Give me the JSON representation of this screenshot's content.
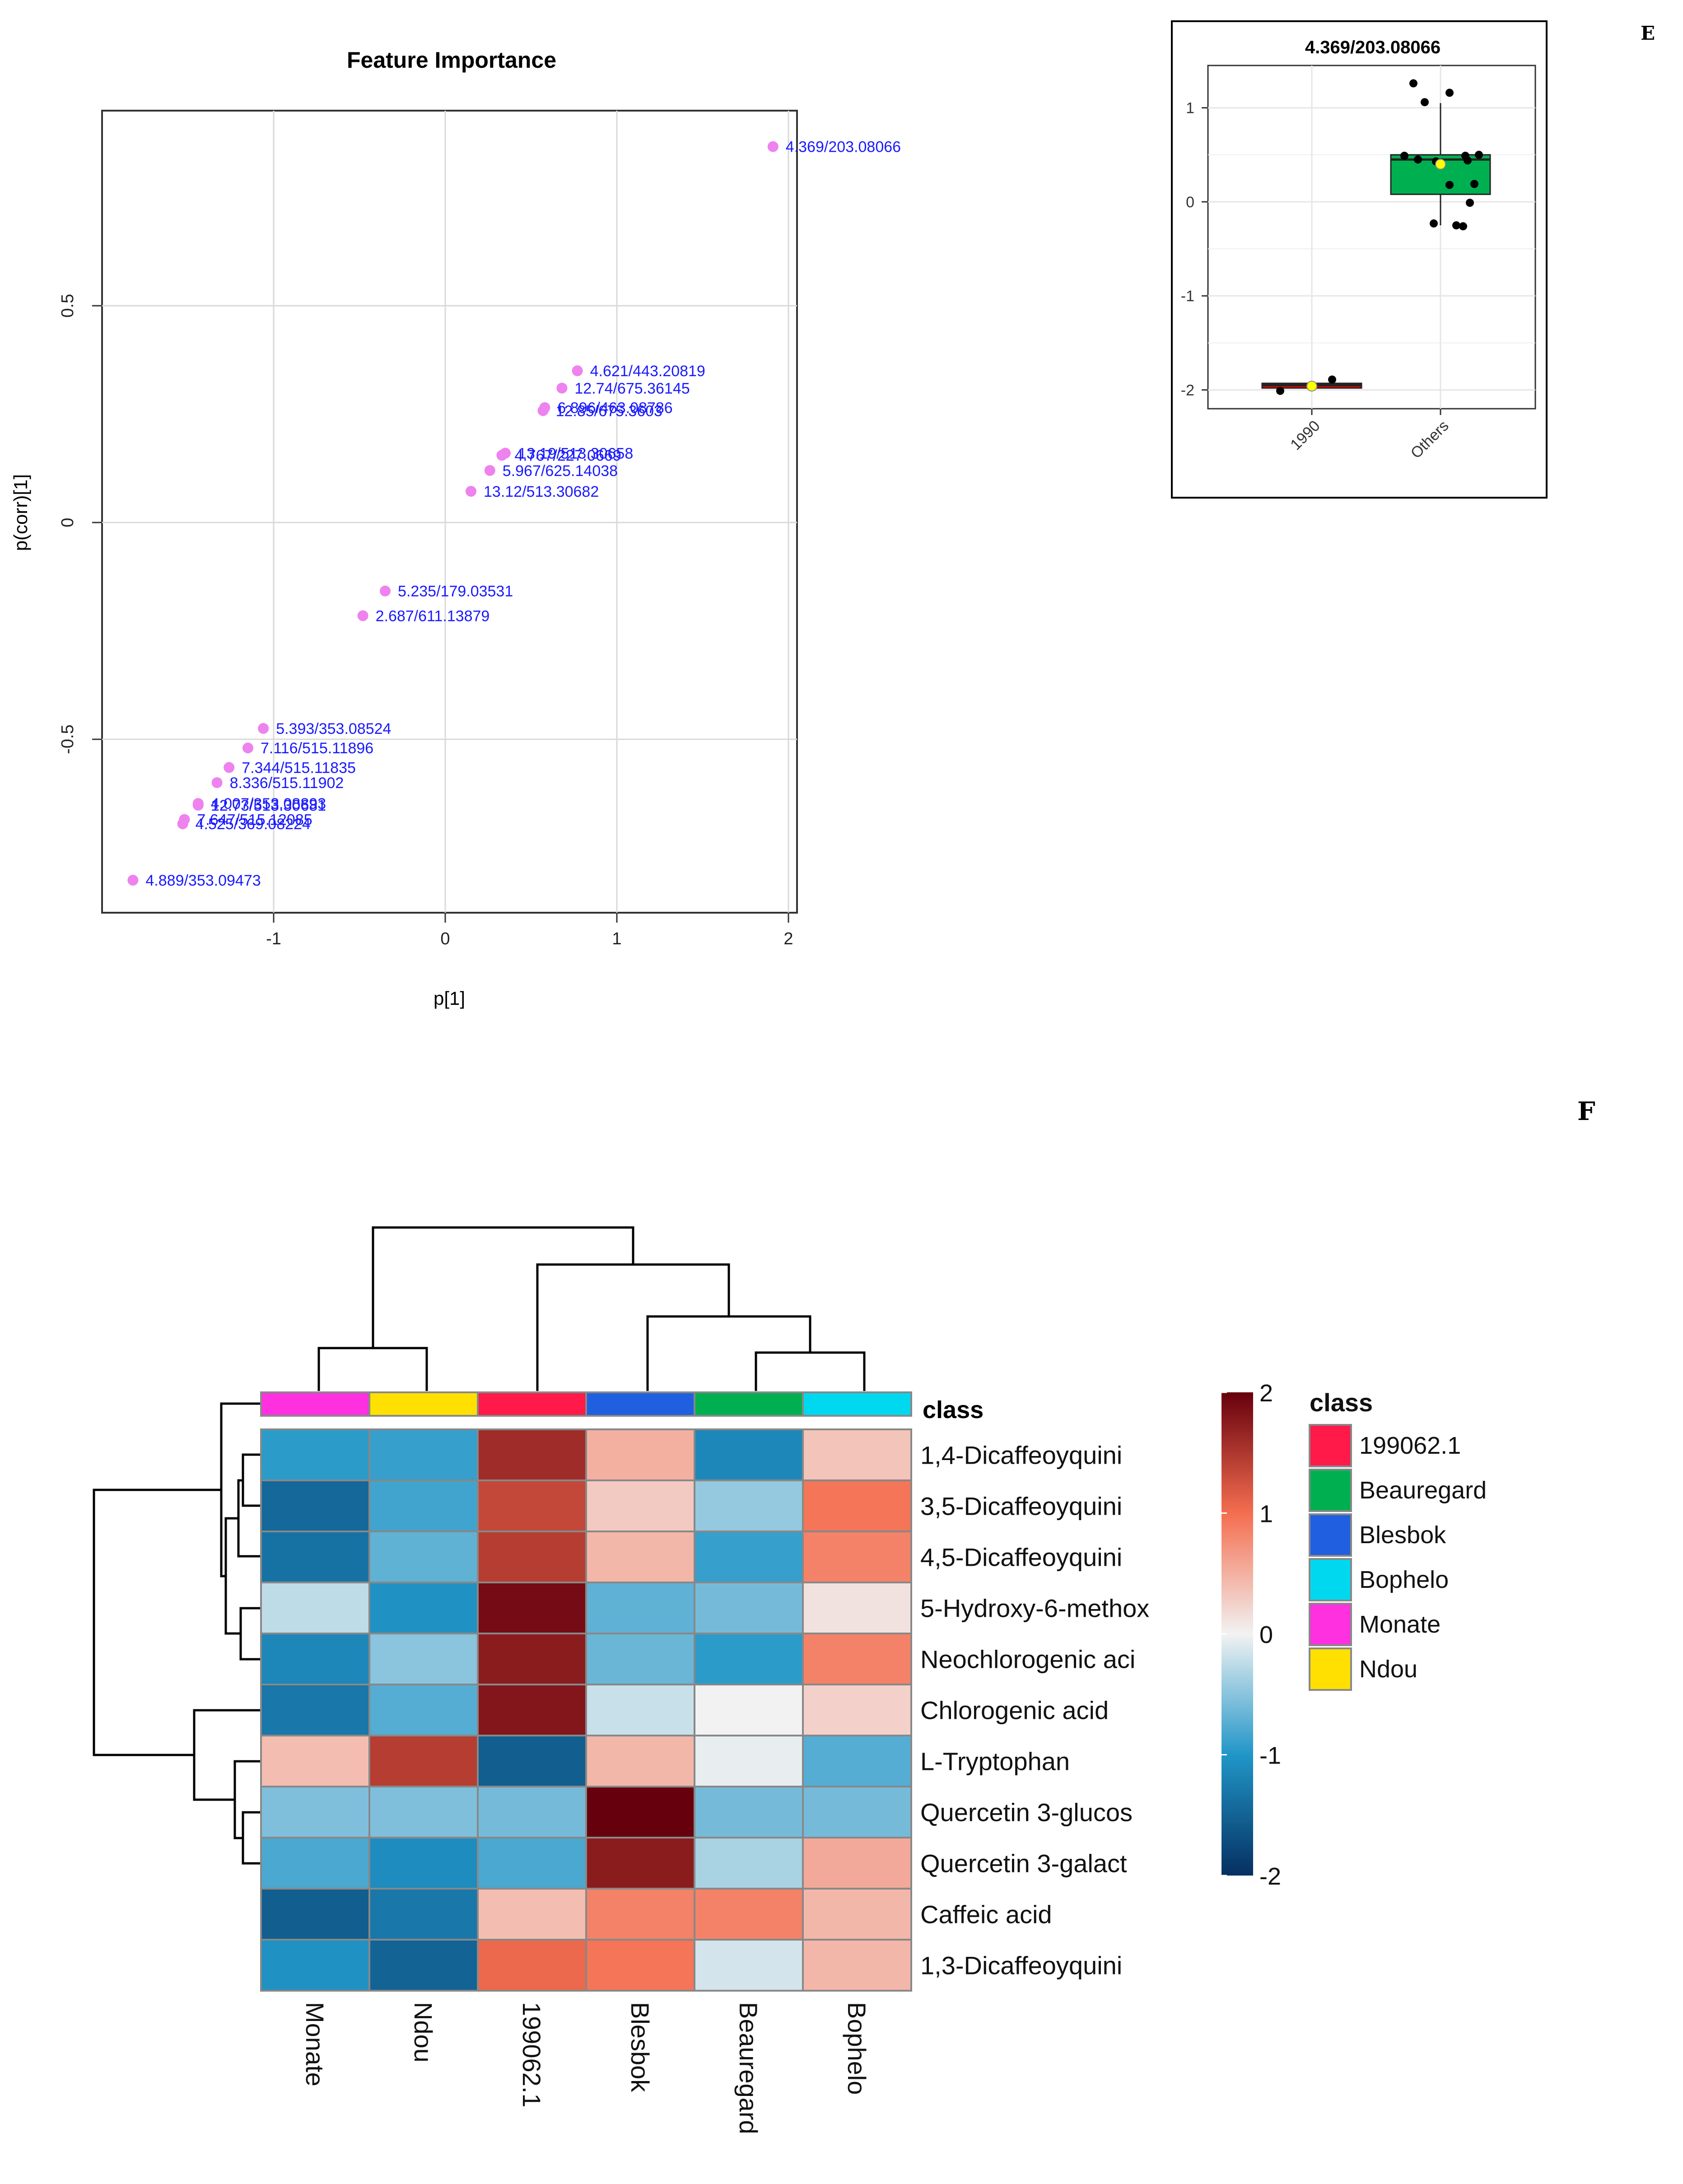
{
  "panel_labels": {
    "e": "E",
    "f": "F"
  },
  "chart_data": [
    {
      "type": "scatter",
      "title": "Feature Importance",
      "xlabel": "p[1]",
      "ylabel": "p(corr)[1]",
      "xlim": [
        -2.0,
        2.05
      ],
      "ylim": [
        -0.9,
        0.95
      ],
      "xticks": [
        -1,
        0,
        1,
        2
      ],
      "yticks": [
        -0.5,
        0.0,
        0.5
      ],
      "grid": true,
      "point_color": "#ee82ee",
      "label_color": "#1a1aff",
      "points": [
        {
          "x": 1.91,
          "y": 0.867,
          "label": "4.369/203.08066"
        },
        {
          "x": 0.77,
          "y": 0.35,
          "label": "4.621/443.20819"
        },
        {
          "x": 0.68,
          "y": 0.31,
          "label": "12.74/675.36145"
        },
        {
          "x": 0.58,
          "y": 0.265,
          "label": "6.896/463.08786"
        },
        {
          "x": 0.57,
          "y": 0.258,
          "label": "12.85/675.3603"
        },
        {
          "x": 0.35,
          "y": 0.16,
          "label": "13.19/513.30658"
        },
        {
          "x": 0.33,
          "y": 0.155,
          "label": "4.767/227.0669"
        },
        {
          "x": 0.26,
          "y": 0.12,
          "label": "5.967/625.14038"
        },
        {
          "x": 0.15,
          "y": 0.072,
          "label": "13.12/513.30682"
        },
        {
          "x": -0.35,
          "y": -0.158,
          "label": "5.235/179.03531"
        },
        {
          "x": -0.48,
          "y": -0.215,
          "label": "2.687/611.13879"
        },
        {
          "x": -1.06,
          "y": -0.475,
          "label": "5.393/353.08524"
        },
        {
          "x": -1.15,
          "y": -0.52,
          "label": "7.116/515.11896"
        },
        {
          "x": -1.26,
          "y": -0.565,
          "label": "7.344/515.11835"
        },
        {
          "x": -1.33,
          "y": -0.6,
          "label": "8.336/515.11902"
        },
        {
          "x": -1.44,
          "y": -0.648,
          "label": "4.007/353.08893"
        },
        {
          "x": -1.44,
          "y": -0.652,
          "label": "12.73/513.30681"
        },
        {
          "x": -1.52,
          "y": -0.685,
          "label": "7.647/515.12085"
        },
        {
          "x": -1.53,
          "y": -0.695,
          "label": "4.525/369.08224"
        },
        {
          "x": -1.82,
          "y": -0.825,
          "label": "4.889/353.09473"
        }
      ]
    },
    {
      "type": "box",
      "title": "4.369/203.08066",
      "categories": [
        "1990",
        "Others"
      ],
      "ylim": [
        -2.2,
        1.45
      ],
      "yticks": [
        -2,
        -1,
        0,
        1
      ],
      "fills": [
        "#ff0000",
        "#00b050"
      ],
      "boxes": [
        {
          "q1": -1.98,
          "median": -1.95,
          "q3": -1.93,
          "min": -1.98,
          "max": -1.93,
          "mean": -1.96
        },
        {
          "q1": 0.08,
          "median": 0.45,
          "q3": 0.5,
          "min": -0.25,
          "max": 1.05,
          "mean": 0.4
        }
      ],
      "points": [
        {
          "group": 0,
          "y": -2.01
        },
        {
          "group": 0,
          "y": -1.89
        },
        {
          "group": 1,
          "y": 1.26
        },
        {
          "group": 1,
          "y": 1.16
        },
        {
          "group": 1,
          "y": 1.06
        },
        {
          "group": 1,
          "y": 0.5
        },
        {
          "group": 1,
          "y": 0.49
        },
        {
          "group": 1,
          "y": 0.49
        },
        {
          "group": 1,
          "y": 0.45
        },
        {
          "group": 1,
          "y": 0.44
        },
        {
          "group": 1,
          "y": 0.43
        },
        {
          "group": 1,
          "y": 0.19
        },
        {
          "group": 1,
          "y": 0.18
        },
        {
          "group": 1,
          "y": -0.01
        },
        {
          "group": 1,
          "y": -0.23
        },
        {
          "group": 1,
          "y": -0.25
        },
        {
          "group": 1,
          "y": -0.26
        }
      ]
    },
    {
      "type": "heatmap",
      "columns": [
        "Monate",
        "Ndou",
        "199062.1",
        "Blesbok",
        "Beauregard",
        "Bophelo"
      ],
      "column_classes": [
        "Monate",
        "Ndou",
        "199062.1",
        "Blesbok",
        "Beauregard",
        "Bophelo"
      ],
      "rows": [
        "1,4-Dicaffeoyquini",
        "3,5-Dicaffeoyquini",
        "4,5-Dicaffeoyquini",
        "5-Hydroxy-6-methox",
        "Neochlorogenic aci",
        "Chlorogenic acid",
        "L-Tryptophan",
        "Quercetin 3-glucos",
        "Quercetin 3-galact",
        "Caffeic acid",
        "1,3-Dicaffeoyquini"
      ],
      "values": [
        [
          -0.95,
          -0.9,
          1.6,
          0.5,
          -1.15,
          0.35
        ],
        [
          -1.45,
          -0.85,
          1.35,
          0.3,
          -0.45,
          0.95
        ],
        [
          -1.35,
          -0.7,
          1.45,
          0.45,
          -0.9,
          0.85
        ],
        [
          -0.25,
          -1.05,
          1.9,
          -0.7,
          -0.6,
          0.12
        ],
        [
          -1.15,
          -0.5,
          1.75,
          -0.65,
          -0.95,
          0.85
        ],
        [
          -1.3,
          -0.75,
          1.8,
          -0.2,
          0.0,
          0.25
        ],
        [
          0.4,
          1.45,
          -1.55,
          0.45,
          -0.05,
          -0.75
        ],
        [
          -0.55,
          -0.55,
          -0.6,
          2.0,
          -0.6,
          -0.6
        ],
        [
          -0.8,
          -1.1,
          -0.8,
          1.75,
          -0.35,
          0.55
        ],
        [
          -1.55,
          -1.3,
          0.4,
          0.85,
          0.85,
          0.45
        ],
        [
          -1.05,
          -1.5,
          1.05,
          0.95,
          -0.15,
          0.45
        ]
      ],
      "color_scale": {
        "min": -2,
        "max": 2,
        "ticks": [
          2,
          1,
          0,
          -1,
          -2
        ]
      },
      "legend": {
        "title": "class",
        "entries": [
          {
            "name": "199062.1",
            "color": "#ff1a4a"
          },
          {
            "name": "Beauregard",
            "color": "#00b050"
          },
          {
            "name": "Blesbok",
            "color": "#2060e0"
          },
          {
            "name": "Bophelo",
            "color": "#00d8f0"
          },
          {
            "name": "Monate",
            "color": "#ff30e0"
          },
          {
            "name": "Ndou",
            "color": "#ffe000"
          }
        ]
      },
      "class_bar_label": "class"
    }
  ]
}
